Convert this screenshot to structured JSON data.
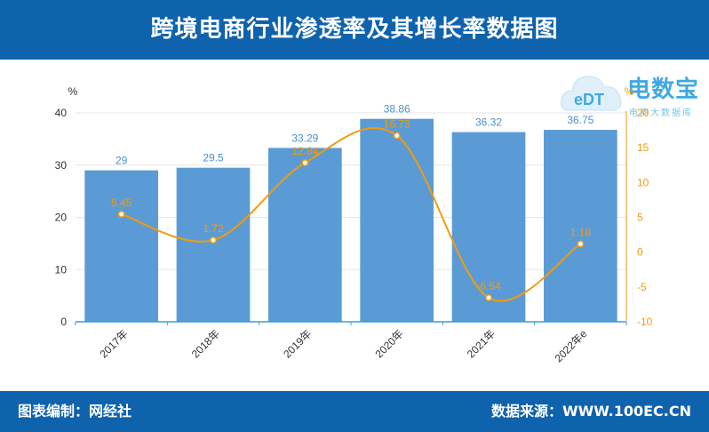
{
  "header": {
    "title": "跨境电商行业渗透率及其增长率数据图"
  },
  "footer": {
    "left": "图表编制：网经社",
    "right": "数据来源：WWW.100EC.CN"
  },
  "logo": {
    "name": "电数宝",
    "tagline": "电商大数据库",
    "mark": "eDT"
  },
  "chart_data": {
    "type": "bar",
    "categories": [
      "2017年",
      "2018年",
      "2019年",
      "2020年",
      "2021年",
      "2022年e"
    ],
    "series": [
      {
        "values": [
          29,
          29.5,
          33.29,
          38.86,
          36.32,
          36.75
        ],
        "color": "#5b9bd5",
        "chart": "bar",
        "axis": "left",
        "labels": [
          "29",
          "29.5",
          "33.29",
          "38.86",
          "36.32",
          "36.75"
        ]
      },
      {
        "values": [
          5.45,
          1.72,
          12.84,
          16.73,
          -6.54,
          1.18
        ],
        "color": "#f29b0c",
        "chart": "line",
        "axis": "right",
        "labels": [
          "5.45",
          "1.72",
          "12.84",
          "16.73",
          "-6.54",
          "1.18"
        ]
      }
    ],
    "ylabel": "%",
    "y2label": "%",
    "ylim": [
      0,
      40
    ],
    "y2lim": [
      -10,
      20
    ],
    "yticks": [
      "0",
      "10",
      "20",
      "30",
      "40"
    ],
    "y2ticks": [
      "-10",
      "-5",
      "0",
      "5",
      "10",
      "15",
      "20"
    ],
    "grid": true
  }
}
